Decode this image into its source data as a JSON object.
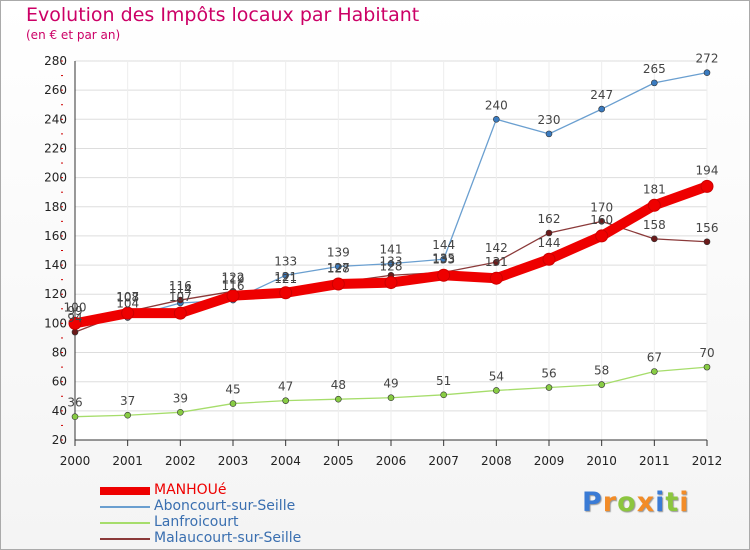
{
  "title": "Evolution des Impôts locaux par Habitant",
  "subtitle": "(en € et par an)",
  "logo": {
    "text": "Proxiti",
    "letters": [
      {
        "ch": "P",
        "color": "#3a7bd5"
      },
      {
        "ch": "r",
        "color": "#f28c28"
      },
      {
        "ch": "o",
        "color": "#8cc63f"
      },
      {
        "ch": "x",
        "color": "#f28c28"
      },
      {
        "ch": "i",
        "color": "#3a7bd5"
      },
      {
        "ch": "t",
        "color": "#8cc63f"
      },
      {
        "ch": "i",
        "color": "#f28c28"
      }
    ]
  },
  "chart_data": {
    "type": "line",
    "title": "Evolution des Impôts locaux par Habitant",
    "ylabel": "(en € et par an)",
    "ylim": [
      20,
      280
    ],
    "yticks": [
      20,
      40,
      60,
      80,
      100,
      120,
      140,
      160,
      180,
      200,
      220,
      240,
      260,
      280
    ],
    "categories": [
      "2000",
      "2001",
      "2002",
      "2003",
      "2004",
      "2005",
      "2006",
      "2007",
      "2008",
      "2009",
      "2010",
      "2011",
      "2012"
    ],
    "grid": true,
    "legend_position": "bottom-left",
    "series": [
      {
        "name": "MANHOUé",
        "color": "#ee0000",
        "marker": "#ee0000",
        "emphasis": true,
        "values": [
          100,
          107,
          107,
          119,
          121,
          127,
          128,
          133,
          131,
          144,
          160,
          181,
          194
        ]
      },
      {
        "name": "Aboncourt-sur-Seille",
        "color": "#6a9fd0",
        "marker": "#3a7bc0",
        "emphasis": false,
        "values": [
          99,
          104,
          114,
          116,
          133,
          139,
          141,
          144,
          240,
          230,
          247,
          265,
          272
        ]
      },
      {
        "name": "Lanfroicourt",
        "color": "#a6dd6b",
        "marker": "#88cc44",
        "emphasis": false,
        "values": [
          36,
          37,
          39,
          45,
          47,
          48,
          49,
          51,
          54,
          56,
          58,
          67,
          70
        ]
      },
      {
        "name": "Malaucourt-sur-Seille",
        "color": "#8b3a3a",
        "marker": "#6b1a1a",
        "emphasis": false,
        "values": [
          94,
          108,
          116,
          122,
          121,
          128,
          133,
          135,
          142,
          162,
          170,
          158,
          156
        ]
      }
    ]
  }
}
